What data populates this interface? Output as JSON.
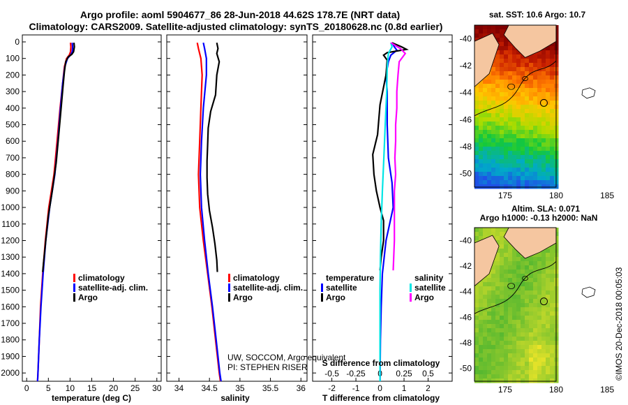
{
  "header": {
    "line1": "Argo profile: aoml 5904677_86 28-Jun-2018 44.62S 178.7E (NRT data)",
    "line2": "Climatology: CARS2009. Satellite-adjusted climatology: synTS_20180628.nc (0.8d earlier)"
  },
  "credits": {
    "line1": "UW, SOCCOM, Argo equivalent",
    "line2": "PI: STEPHEN RISER",
    "imos": "©IMOS 20-Dec-2018 00:05:03"
  },
  "colors": {
    "climatology": "#ff0000",
    "satellite": "#0000ff",
    "argo": "#000000",
    "salinity_sat": "#00e5e5",
    "salinity_argo": "#ff00ff"
  },
  "chart_data": [
    {
      "type": "line",
      "name": "temperature",
      "xlabel": "temperature (deg C)",
      "ylim": [
        2050,
        0
      ],
      "xlim": [
        -1,
        31
      ],
      "xticks": [
        "0",
        "5",
        "10",
        "15",
        "20",
        "25",
        "30"
      ],
      "yticks": [
        "0",
        "100",
        "200",
        "300",
        "400",
        "500",
        "600",
        "700",
        "800",
        "900",
        "1000",
        "1100",
        "1200",
        "1300",
        "1400",
        "1500",
        "1600",
        "1700",
        "1800",
        "1900",
        "2000"
      ],
      "legend": [
        "climatology",
        "satellite-adj. clim.",
        "Argo"
      ],
      "series": [
        {
          "name": "climatology",
          "color": "#ff0000",
          "points": [
            [
              10.1,
              5
            ],
            [
              10.2,
              30
            ],
            [
              10.1,
              60
            ],
            [
              9.8,
              80
            ],
            [
              9.2,
              100
            ],
            [
              8.7,
              150
            ],
            [
              8.3,
              250
            ],
            [
              7.7,
              400
            ],
            [
              7.0,
              600
            ],
            [
              6.3,
              800
            ],
            [
              5.1,
              1000
            ],
            [
              4.3,
              1200
            ],
            [
              3.7,
              1400
            ],
            [
              3.2,
              1600
            ],
            [
              2.9,
              1800
            ],
            [
              2.6,
              2000
            ],
            [
              2.5,
              2050
            ]
          ]
        },
        {
          "name": "satellite-adj. clim.",
          "color": "#0000ff",
          "points": [
            [
              10.5,
              5
            ],
            [
              10.6,
              30
            ],
            [
              10.5,
              60
            ],
            [
              10.1,
              80
            ],
            [
              9.4,
              100
            ],
            [
              8.8,
              150
            ],
            [
              8.3,
              250
            ],
            [
              7.8,
              400
            ],
            [
              7.2,
              600
            ],
            [
              6.5,
              800
            ],
            [
              5.3,
              1000
            ],
            [
              4.4,
              1200
            ],
            [
              3.8,
              1400
            ],
            [
              3.3,
              1600
            ],
            [
              2.9,
              1800
            ],
            [
              2.6,
              2000
            ],
            [
              2.5,
              2050
            ]
          ]
        },
        {
          "name": "Argo",
          "color": "#000000",
          "points": [
            [
              10.9,
              5
            ],
            [
              11.0,
              30
            ],
            [
              10.8,
              60
            ],
            [
              10.4,
              75
            ],
            [
              9.6,
              90
            ],
            [
              9.0,
              120
            ],
            [
              8.7,
              180
            ],
            [
              8.4,
              260
            ],
            [
              8.0,
              380
            ],
            [
              7.4,
              560
            ],
            [
              6.8,
              730
            ],
            [
              5.9,
              900
            ],
            [
              5.0,
              1050
            ],
            [
              4.4,
              1200
            ],
            [
              3.9,
              1330
            ],
            [
              3.7,
              1390
            ]
          ]
        }
      ]
    },
    {
      "type": "line",
      "name": "salinity",
      "xlabel": "salinity",
      "ylim": [
        2050,
        0
      ],
      "xlim": [
        33.8,
        36.1
      ],
      "xticks": [
        "34",
        "34.5",
        "35",
        "35.5",
        "36"
      ],
      "legend": [
        "climatology",
        "satellite-adj. clim.",
        "Argo"
      ],
      "series": [
        {
          "name": "climatology",
          "color": "#ff0000",
          "points": [
            [
              34.3,
              5
            ],
            [
              34.32,
              40
            ],
            [
              34.36,
              100
            ],
            [
              34.38,
              200
            ],
            [
              34.36,
              400
            ],
            [
              34.34,
              600
            ],
            [
              34.32,
              800
            ],
            [
              34.34,
              1000
            ],
            [
              34.4,
              1200
            ],
            [
              34.47,
              1400
            ],
            [
              34.54,
              1600
            ],
            [
              34.6,
              1800
            ],
            [
              34.66,
              2000
            ],
            [
              34.68,
              2050
            ]
          ]
        },
        {
          "name": "satellite-adj. clim.",
          "color": "#0000ff",
          "points": [
            [
              34.4,
              5
            ],
            [
              34.42,
              40
            ],
            [
              34.45,
              100
            ],
            [
              34.45,
              200
            ],
            [
              34.4,
              400
            ],
            [
              34.37,
              600
            ],
            [
              34.35,
              800
            ],
            [
              34.37,
              1000
            ],
            [
              34.42,
              1200
            ],
            [
              34.48,
              1400
            ],
            [
              34.55,
              1600
            ],
            [
              34.61,
              1800
            ],
            [
              34.67,
              2000
            ],
            [
              34.69,
              2050
            ]
          ]
        },
        {
          "name": "Argo",
          "color": "#000000",
          "points": [
            [
              34.62,
              5
            ],
            [
              34.64,
              40
            ],
            [
              34.62,
              70
            ],
            [
              34.66,
              120
            ],
            [
              34.62,
              200
            ],
            [
              34.6,
              320
            ],
            [
              34.52,
              420
            ],
            [
              34.48,
              520
            ],
            [
              34.47,
              620
            ],
            [
              34.46,
              720
            ],
            [
              34.46,
              820
            ],
            [
              34.47,
              920
            ],
            [
              34.5,
              1020
            ],
            [
              34.55,
              1120
            ],
            [
              34.59,
              1220
            ],
            [
              34.62,
              1320
            ],
            [
              34.63,
              1390
            ]
          ]
        }
      ]
    },
    {
      "type": "line",
      "name": "difference",
      "xlabel": "T difference from climatology",
      "xlabel_top": "S difference from climatology",
      "ylim": [
        2050,
        0
      ],
      "xlim": [
        -2.8,
        3.0
      ],
      "xticks": [
        "-2",
        "-1",
        "0",
        "1",
        "2"
      ],
      "xticks_top": [
        "-0.5",
        "-0.25",
        "0",
        "0.25",
        "0.5"
      ],
      "legend_left_title": "temperature",
      "legend_right_title": "salinity",
      "legend_left": [
        "satellite",
        "Argo"
      ],
      "legend_right": [
        "satellite",
        "Argo"
      ],
      "series": [
        {
          "name": "satellite",
          "kind": "temperature",
          "color": "#0000ff",
          "points": [
            [
              0.5,
              5
            ],
            [
              0.6,
              30
            ],
            [
              0.7,
              50
            ],
            [
              0.45,
              80
            ],
            [
              0.35,
              120
            ],
            [
              0.25,
              200
            ],
            [
              0.3,
              300
            ],
            [
              0.3,
              500
            ],
            [
              0.35,
              700
            ],
            [
              0.5,
              850
            ],
            [
              0.55,
              1000
            ],
            [
              0.25,
              1200
            ],
            [
              0.1,
              1400
            ],
            [
              0.05,
              1600
            ],
            [
              0.02,
              1800
            ],
            [
              0.0,
              2050
            ]
          ]
        },
        {
          "name": "Argo",
          "kind": "temperature",
          "color": "#000000",
          "points": [
            [
              0.5,
              5
            ],
            [
              0.9,
              30
            ],
            [
              1.1,
              45
            ],
            [
              0.3,
              65
            ],
            [
              0.15,
              80
            ],
            [
              0.3,
              110
            ],
            [
              0.25,
              200
            ],
            [
              0.0,
              380
            ],
            [
              -0.1,
              560
            ],
            [
              -0.3,
              680
            ],
            [
              -0.25,
              800
            ],
            [
              -0.15,
              900
            ],
            [
              0.0,
              1000
            ],
            [
              0.15,
              1080
            ],
            [
              0.15,
              1200
            ],
            [
              0.05,
              1300
            ],
            [
              0.0,
              1380
            ]
          ]
        },
        {
          "name": "satellite",
          "kind": "salinity",
          "color": "#00e5e5",
          "points": [
            [
              0.45,
              5
            ],
            [
              0.5,
              30
            ],
            [
              0.35,
              70
            ],
            [
              0.3,
              150
            ],
            [
              0.28,
              300
            ],
            [
              0.22,
              500
            ],
            [
              0.16,
              700
            ],
            [
              0.1,
              900
            ],
            [
              0.05,
              1100
            ],
            [
              0.02,
              1300
            ],
            [
              0.0,
              1500
            ],
            [
              0.0,
              2050
            ]
          ]
        },
        {
          "name": "Argo",
          "kind": "salinity",
          "color": "#ff00ff",
          "points": [
            [
              0.45,
              5
            ],
            [
              0.85,
              40
            ],
            [
              1.05,
              70
            ],
            [
              0.8,
              120
            ],
            [
              0.75,
              200
            ],
            [
              0.7,
              300
            ],
            [
              0.7,
              400
            ],
            [
              0.65,
              500
            ],
            [
              0.65,
              600
            ],
            [
              0.62,
              700
            ],
            [
              0.65,
              800
            ],
            [
              0.6,
              900
            ],
            [
              0.6,
              1000
            ],
            [
              0.6,
              1200
            ],
            [
              0.55,
              1380
            ]
          ]
        }
      ]
    },
    {
      "type": "heatmap",
      "name": "sst-map",
      "title": "sat. SST: 10.6 Argo: 10.7",
      "xticks": [
        "175",
        "180",
        "185"
      ],
      "yticks": [
        "-40",
        "-42",
        "-44",
        "-46",
        "-48",
        "-50"
      ],
      "xlim": [
        172,
        186
      ],
      "ylim": [
        -51,
        -39
      ]
    },
    {
      "type": "heatmap",
      "name": "sla-map",
      "title1": "Altim. SLA: 0.071",
      "title2": "Argo h1000: -0.13 h2000: NaN",
      "xticks": [
        "175",
        "180",
        "185"
      ],
      "yticks": [
        "-40",
        "-42",
        "-44",
        "-46",
        "-48",
        "-50"
      ],
      "xlim": [
        172,
        186
      ],
      "ylim": [
        -51,
        -39
      ]
    }
  ]
}
